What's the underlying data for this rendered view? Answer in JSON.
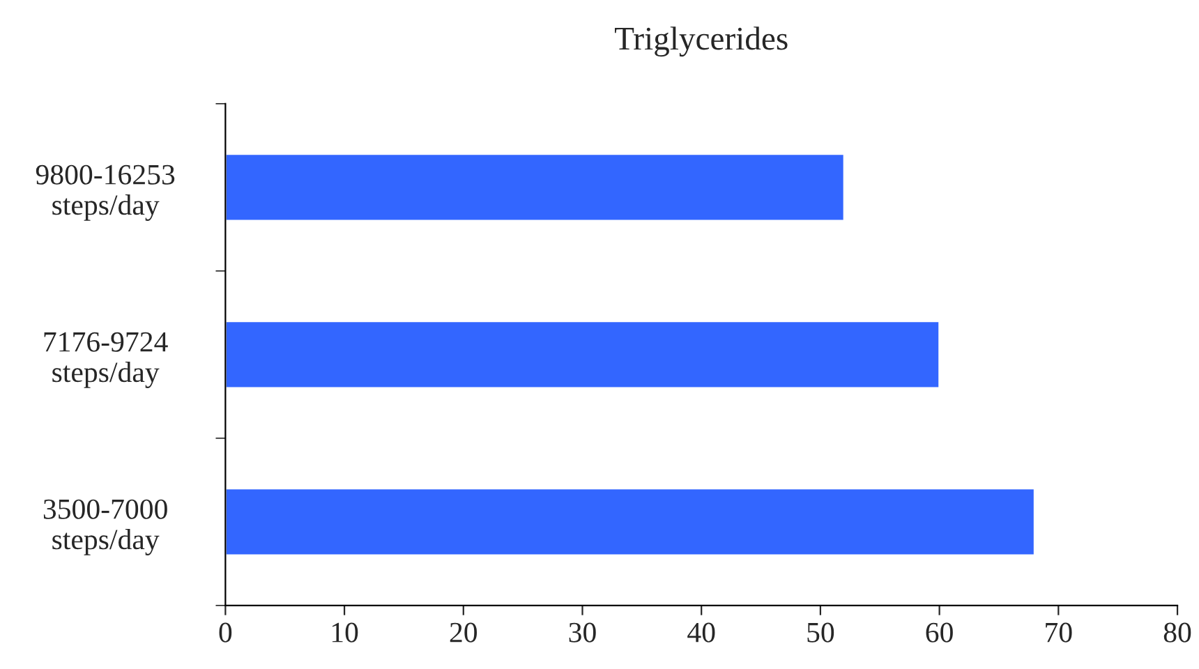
{
  "chart_data": {
    "type": "bar",
    "orientation": "horizontal",
    "title": "Triglycerides",
    "categories": [
      "9800-16253\nsteps/day",
      "7176-9724\nsteps/day",
      "3500-7000\nsteps/day"
    ],
    "values": [
      52,
      60,
      68
    ],
    "color": "#3366ff",
    "xlim": [
      0,
      80
    ],
    "xticks": [
      0,
      10,
      20,
      30,
      40,
      50,
      60,
      70,
      80
    ],
    "grid": false,
    "legend": false
  }
}
